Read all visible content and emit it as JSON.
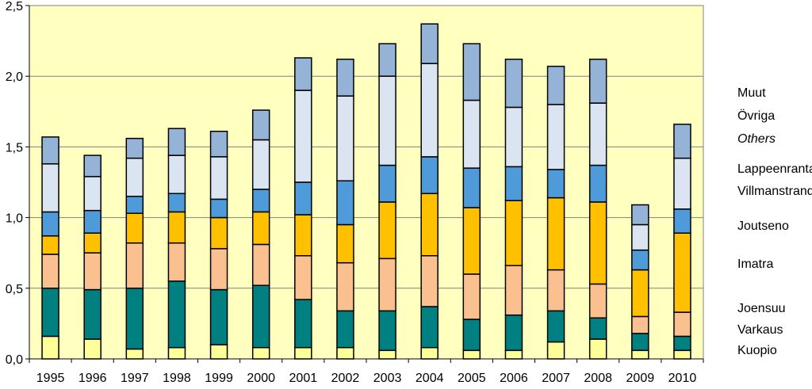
{
  "chart_data": {
    "type": "bar",
    "stacked": true,
    "categories": [
      "1995",
      "1996",
      "1997",
      "1998",
      "1999",
      "2000",
      "2001",
      "2002",
      "2003",
      "2004",
      "2005",
      "2006",
      "2007",
      "2008",
      "2009",
      "2010"
    ],
    "ylim": [
      0,
      2.5
    ],
    "yticks": [
      "0,0",
      "0,5",
      "1,0",
      "1,5",
      "2,0",
      "2,5"
    ],
    "yticks_values": [
      0,
      0.5,
      1.0,
      1.5,
      2.0,
      2.5
    ],
    "series": [
      {
        "name": "Kuopio",
        "color": "#ffff99",
        "values": [
          0.16,
          0.14,
          0.07,
          0.08,
          0.1,
          0.08,
          0.08,
          0.08,
          0.06,
          0.08,
          0.06,
          0.06,
          0.12,
          0.14,
          0.06,
          0.06
        ]
      },
      {
        "name": "Varkaus",
        "color": "#00b050",
        "values": [
          0,
          0,
          0,
          0,
          0,
          0,
          0,
          0,
          0,
          0,
          0,
          0,
          0,
          0,
          0,
          0
        ]
      },
      {
        "name": "Joensuu",
        "color": "#008080",
        "values": [
          0.34,
          0.35,
          0.43,
          0.47,
          0.39,
          0.44,
          0.34,
          0.26,
          0.28,
          0.29,
          0.22,
          0.25,
          0.22,
          0.15,
          0.12,
          0.1
        ]
      },
      {
        "name": "Imatra",
        "color": "#fac090",
        "values": [
          0.24,
          0.26,
          0.32,
          0.27,
          0.29,
          0.29,
          0.31,
          0.34,
          0.37,
          0.36,
          0.32,
          0.35,
          0.29,
          0.24,
          0.12,
          0.17
        ]
      },
      {
        "name": "Joutseno",
        "color": "#ffc000",
        "values": [
          0.13,
          0.14,
          0.21,
          0.22,
          0.22,
          0.23,
          0.29,
          0.27,
          0.4,
          0.44,
          0.47,
          0.46,
          0.51,
          0.58,
          0.33,
          0.56
        ]
      },
      {
        "name": "Lappeenranta / Villmanstrand",
        "color": "#4f9ad8",
        "values": [
          0.17,
          0.16,
          0.12,
          0.13,
          0.13,
          0.16,
          0.23,
          0.31,
          0.26,
          0.26,
          0.28,
          0.24,
          0.2,
          0.26,
          0.14,
          0.17
        ]
      },
      {
        "name": "Muut / Övriga / Others (light)",
        "color": "#dbe5f1",
        "values": [
          0.34,
          0.24,
          0.27,
          0.27,
          0.3,
          0.35,
          0.65,
          0.6,
          0.63,
          0.66,
          0.48,
          0.42,
          0.46,
          0.44,
          0.18,
          0.36
        ]
      },
      {
        "name": "Muut / Övriga / Others",
        "color": "#95b3d7",
        "values": [
          0.19,
          0.15,
          0.14,
          0.19,
          0.18,
          0.21,
          0.23,
          0.26,
          0.23,
          0.28,
          0.4,
          0.34,
          0.27,
          0.31,
          0.14,
          0.24
        ]
      }
    ],
    "legend_labels": [
      "Muut",
      "Övriga",
      "Others",
      "Lappeenranta",
      "Villmanstrand",
      "Joutseno",
      "Imatra",
      "Joensuu",
      "Varkaus",
      "Kuopio"
    ],
    "legend_position": "right",
    "grid": true,
    "plot_background": "#ffffc0",
    "title": "",
    "xlabel": "",
    "ylabel": ""
  }
}
